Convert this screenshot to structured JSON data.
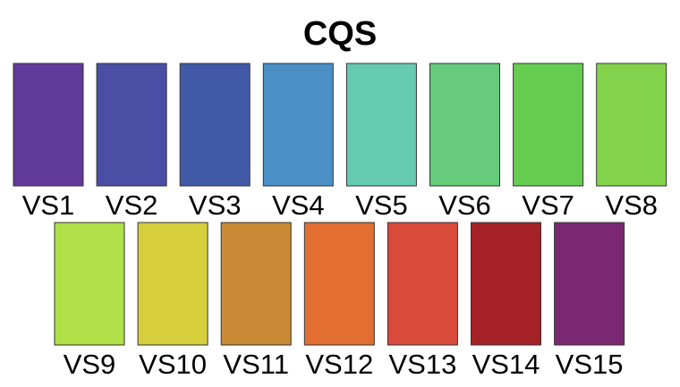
{
  "title": "CQS",
  "rows": [
    {
      "swatches": [
        {
          "label": "VS1",
          "color": "#613a9a"
        },
        {
          "label": "VS2",
          "color": "#4a4ea5"
        },
        {
          "label": "VS3",
          "color": "#425aa8"
        },
        {
          "label": "VS4",
          "color": "#4a8fc6"
        },
        {
          "label": "VS5",
          "color": "#66cbb0"
        },
        {
          "label": "VS6",
          "color": "#66cb7b"
        },
        {
          "label": "VS7",
          "color": "#66cc4f"
        },
        {
          "label": "VS8",
          "color": "#83d24c"
        }
      ]
    },
    {
      "swatches": [
        {
          "label": "VS9",
          "color": "#afe047"
        },
        {
          "label": "VS10",
          "color": "#d6cf3b"
        },
        {
          "label": "VS11",
          "color": "#cb8a35"
        },
        {
          "label": "VS12",
          "color": "#e26e32"
        },
        {
          "label": "VS13",
          "color": "#d94a3a"
        },
        {
          "label": "VS14",
          "color": "#a42227"
        },
        {
          "label": "VS15",
          "color": "#7b2873"
        }
      ]
    }
  ]
}
